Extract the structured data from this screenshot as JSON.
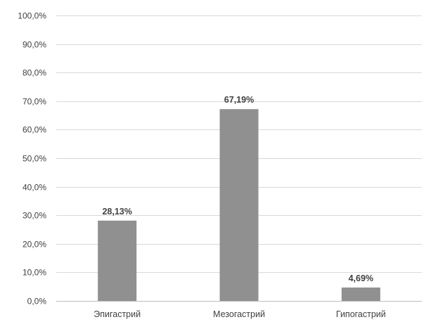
{
  "chart_data": {
    "type": "bar",
    "categories": [
      "Эпигастрий",
      "Мезогастрий",
      "Гипогастрий"
    ],
    "values": [
      28.13,
      67.19,
      4.69
    ],
    "data_labels": [
      "28,13%",
      "67,19%",
      "4,69%"
    ],
    "title": "",
    "xlabel": "",
    "ylabel": "",
    "ylim": [
      0,
      100
    ],
    "yticks": [
      0,
      10,
      20,
      30,
      40,
      50,
      60,
      70,
      80,
      90,
      100
    ],
    "ytick_labels": [
      "0,0%",
      "10,0%",
      "20,0%",
      "30,0%",
      "40,0%",
      "50,0%",
      "60,0%",
      "70,0%",
      "80,0%",
      "90,0%",
      "100,0%"
    ],
    "bar_color": "#909090",
    "grid": true,
    "legend": "none"
  }
}
